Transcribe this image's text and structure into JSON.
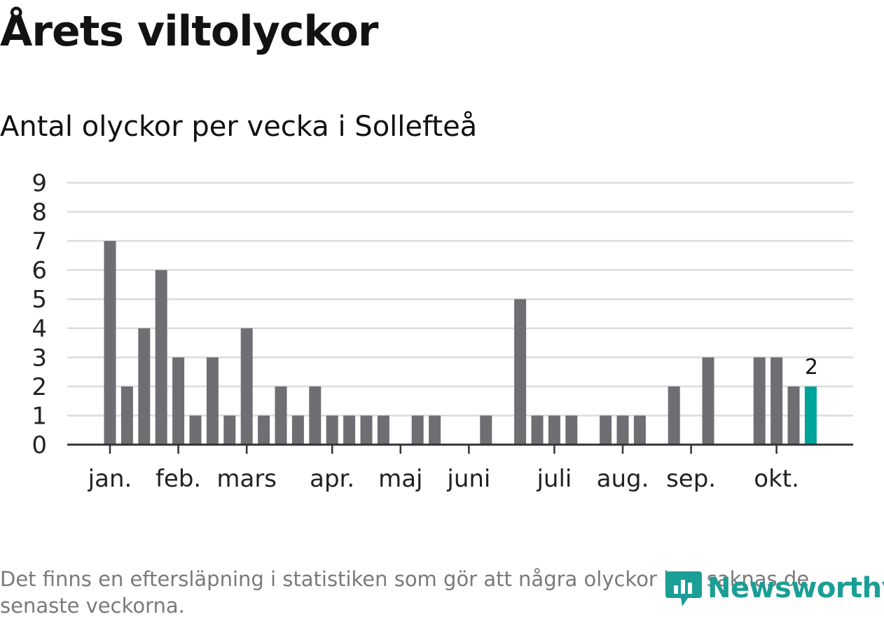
{
  "header": {
    "title": "Årets viltolyckor",
    "subtitle": "Antal olyckor per vecka i Sollefteå"
  },
  "footer": {
    "note": "Det finns en eftersläpning i statistiken som gör att några olyckor kan saknas de senaste veckorna.",
    "brand": "Newsworthy"
  },
  "colors": {
    "bar": "#6e6e73",
    "highlight": "#00a39a",
    "grid": "#dcdcdc",
    "axis": "#333333"
  },
  "chart_data": {
    "type": "bar",
    "title": "Antal olyckor per vecka i Sollefteå",
    "xlabel": "",
    "ylabel": "",
    "ylim": [
      0,
      9
    ],
    "yticks": [
      0,
      1,
      2,
      3,
      4,
      5,
      6,
      7,
      8,
      9
    ],
    "weeks": [
      1,
      2,
      3,
      4,
      5,
      6,
      7,
      8,
      9,
      10,
      11,
      12,
      13,
      14,
      15,
      16,
      17,
      18,
      19,
      20,
      21,
      22,
      23,
      24,
      25,
      26,
      27,
      28,
      29,
      30,
      31,
      32,
      33,
      34,
      35,
      36,
      37,
      38,
      39,
      40,
      41,
      42
    ],
    "values": [
      7,
      2,
      4,
      6,
      3,
      1,
      3,
      1,
      4,
      1,
      2,
      1,
      2,
      1,
      1,
      1,
      1,
      0,
      1,
      1,
      0,
      0,
      1,
      0,
      5,
      1,
      1,
      1,
      0,
      1,
      1,
      1,
      0,
      2,
      0,
      3,
      0,
      0,
      3,
      3,
      2,
      2
    ],
    "highlight_index": 41,
    "highlight_label": "2",
    "month_labels": [
      {
        "label": "jan.",
        "week": 1
      },
      {
        "label": "feb.",
        "week": 5
      },
      {
        "label": "mars",
        "week": 9
      },
      {
        "label": "apr.",
        "week": 14
      },
      {
        "label": "maj",
        "week": 18
      },
      {
        "label": "juni",
        "week": 22
      },
      {
        "label": "juli",
        "week": 27
      },
      {
        "label": "aug.",
        "week": 31
      },
      {
        "label": "sep.",
        "week": 35
      },
      {
        "label": "okt.",
        "week": 40
      }
    ]
  }
}
